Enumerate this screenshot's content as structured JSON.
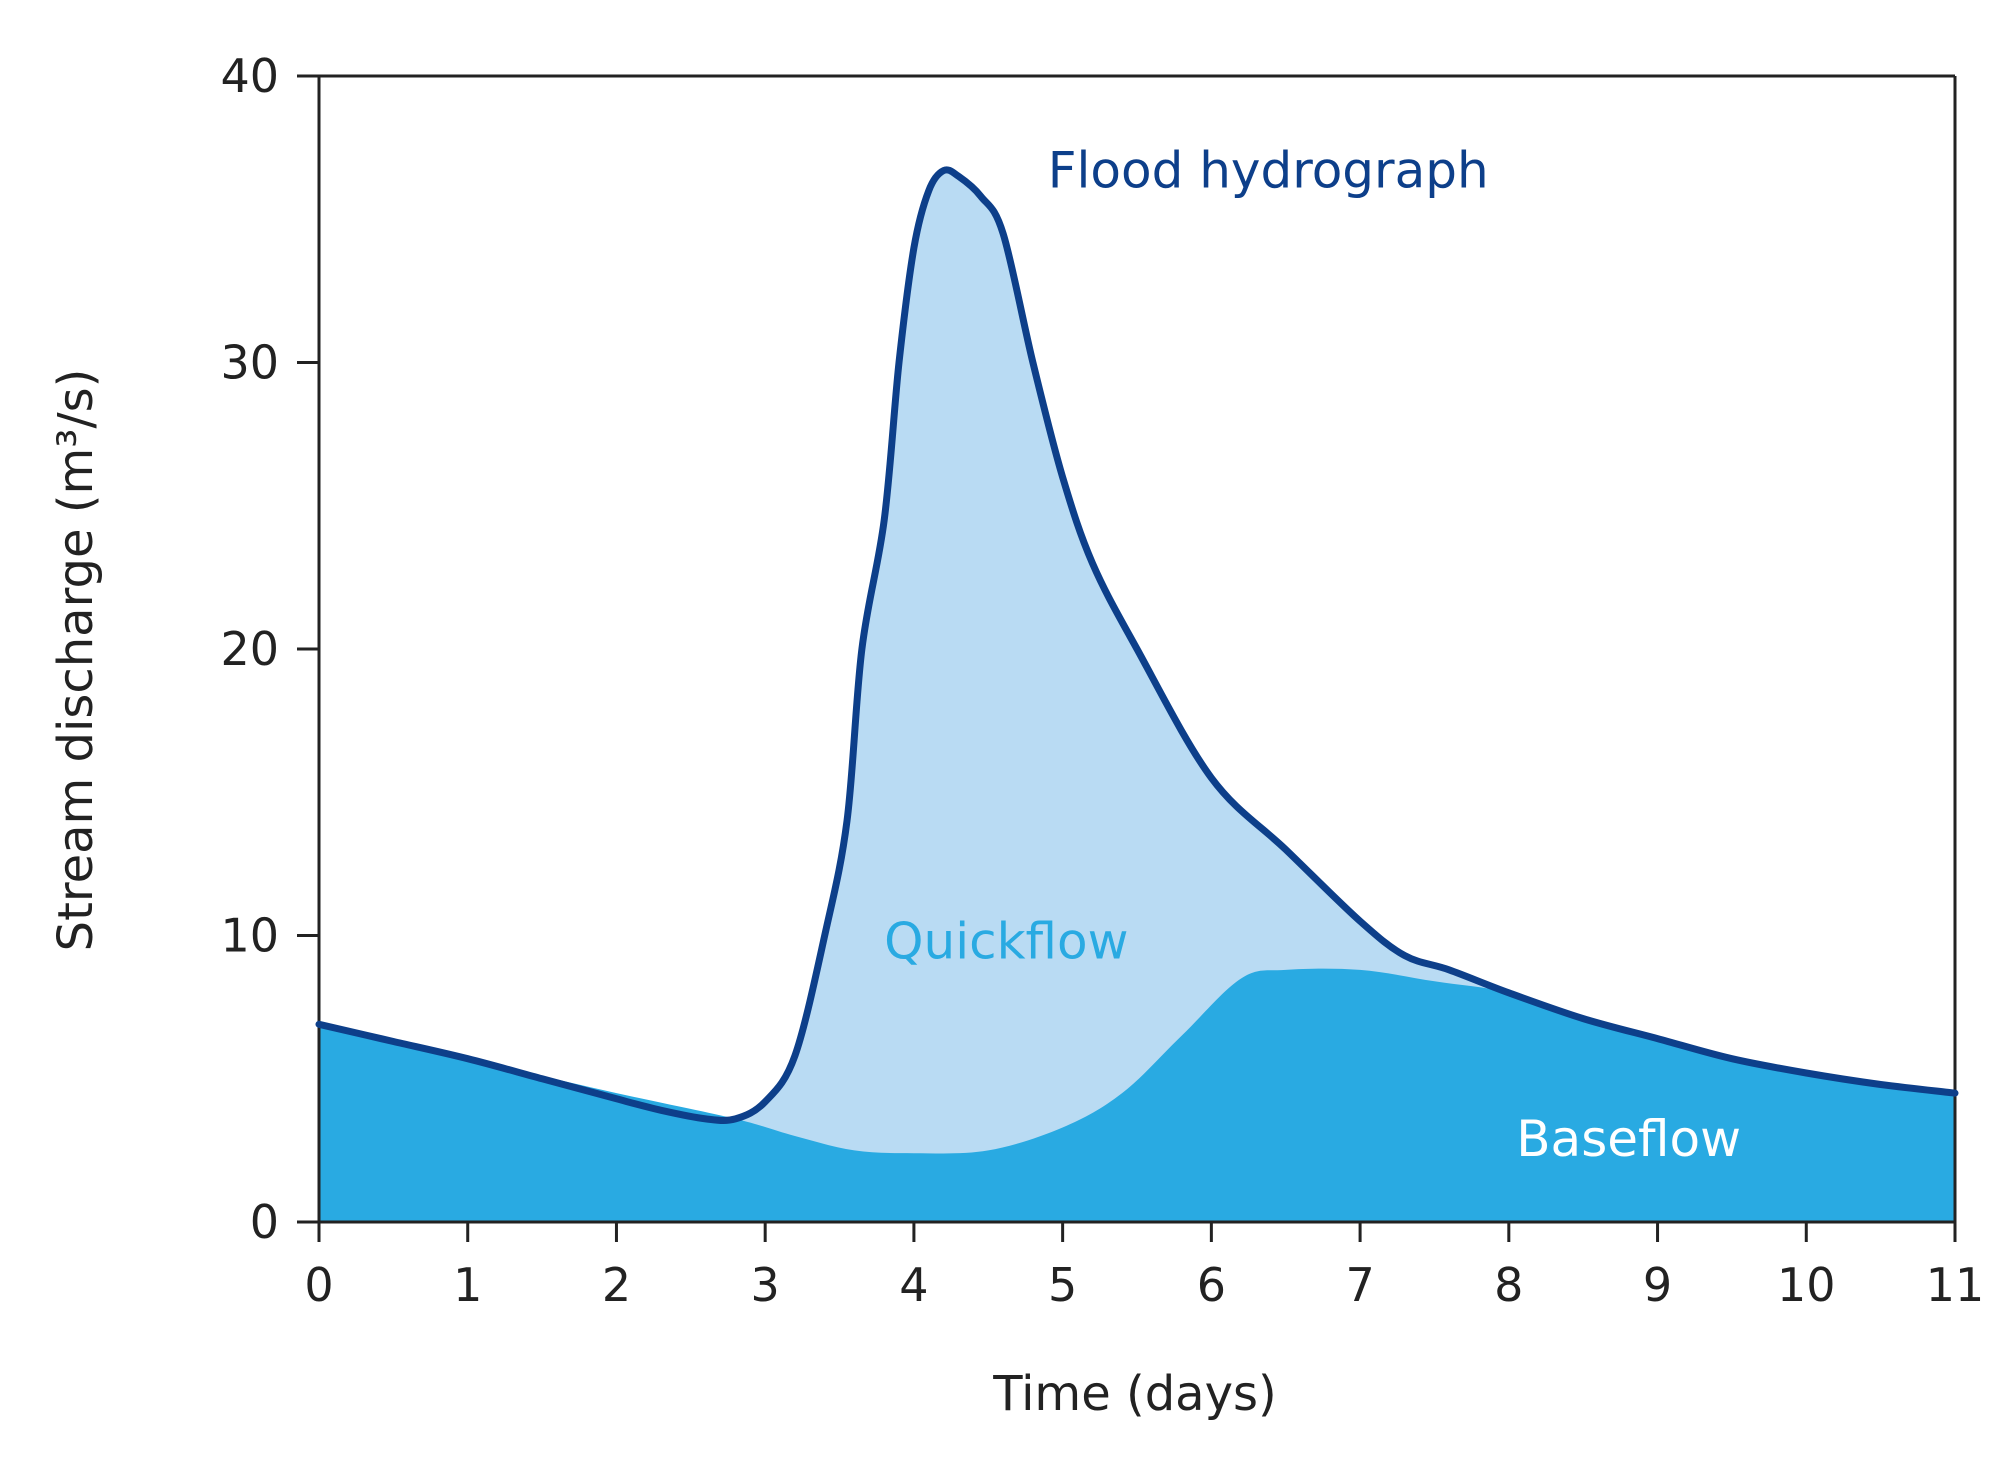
{
  "colors": {
    "flood_line": "#0d3f8a",
    "quickflow_fill": "#b9dbf3",
    "baseflow_fill": "#29aae2",
    "quickflow_label": "#29aae2",
    "baseflow_label": "#ffffff",
    "axis": "#222222"
  },
  "chart_data": {
    "type": "area",
    "xlabel": "Time (days)",
    "ylabel": "Stream discharge (m³/s)",
    "xlim": [
      0,
      11
    ],
    "ylim": [
      0,
      40
    ],
    "x_ticks": [
      "0",
      "1",
      "2",
      "3",
      "4",
      "5",
      "6",
      "7",
      "8",
      "9",
      "10",
      "11"
    ],
    "y_ticks": [
      "0",
      "10",
      "20",
      "30",
      "40"
    ],
    "grid": false,
    "series": [
      {
        "name": "Flood hydrograph",
        "style": "line",
        "color": "#0d3f8a",
        "x": [
          0,
          0.5,
          1,
          1.5,
          2,
          2.3,
          2.6,
          2.8,
          3.0,
          3.2,
          3.4,
          3.55,
          3.65,
          3.8,
          3.9,
          4.0,
          4.1,
          4.2,
          4.3,
          4.45,
          4.6,
          4.8,
          5.0,
          5.2,
          5.5,
          6.0,
          6.5,
          7.0,
          7.3,
          7.6,
          8.0,
          8.5,
          9.0,
          9.5,
          10.0,
          10.5,
          11.0
        ],
        "y": [
          6.9,
          6.3,
          5.7,
          5.0,
          4.3,
          3.9,
          3.6,
          3.6,
          4.2,
          5.8,
          10.0,
          14.0,
          20.0,
          24.5,
          30.0,
          34.0,
          36.0,
          36.7,
          36.5,
          35.8,
          34.5,
          30.0,
          26.0,
          23.0,
          20.0,
          15.5,
          13.0,
          10.5,
          9.3,
          8.8,
          8.0,
          7.1,
          6.4,
          5.7,
          5.2,
          4.8,
          4.5
        ]
      },
      {
        "name": "Baseflow",
        "style": "area",
        "color": "#29aae2",
        "x": [
          0,
          1,
          2,
          2.8,
          3.2,
          3.6,
          4.0,
          4.5,
          5.0,
          5.4,
          5.8,
          6.2,
          6.5,
          7.0,
          7.5,
          8.0,
          8.5,
          9.0,
          9.5,
          10.0,
          10.5,
          11.0
        ],
        "y": [
          6.9,
          5.7,
          4.5,
          3.6,
          3.0,
          2.5,
          2.4,
          2.5,
          3.3,
          4.5,
          6.5,
          8.5,
          8.8,
          8.8,
          8.4,
          8.0,
          7.1,
          6.4,
          5.7,
          5.2,
          4.8,
          4.5
        ]
      }
    ],
    "annotations": [
      {
        "text": "Flood hydrograph",
        "x": 4.9,
        "y": 36.1
      },
      {
        "text": "Quickflow",
        "x": 3.8,
        "y": 9.2
      },
      {
        "text": "Baseflow",
        "x": 8.05,
        "y": 2.3
      }
    ]
  }
}
